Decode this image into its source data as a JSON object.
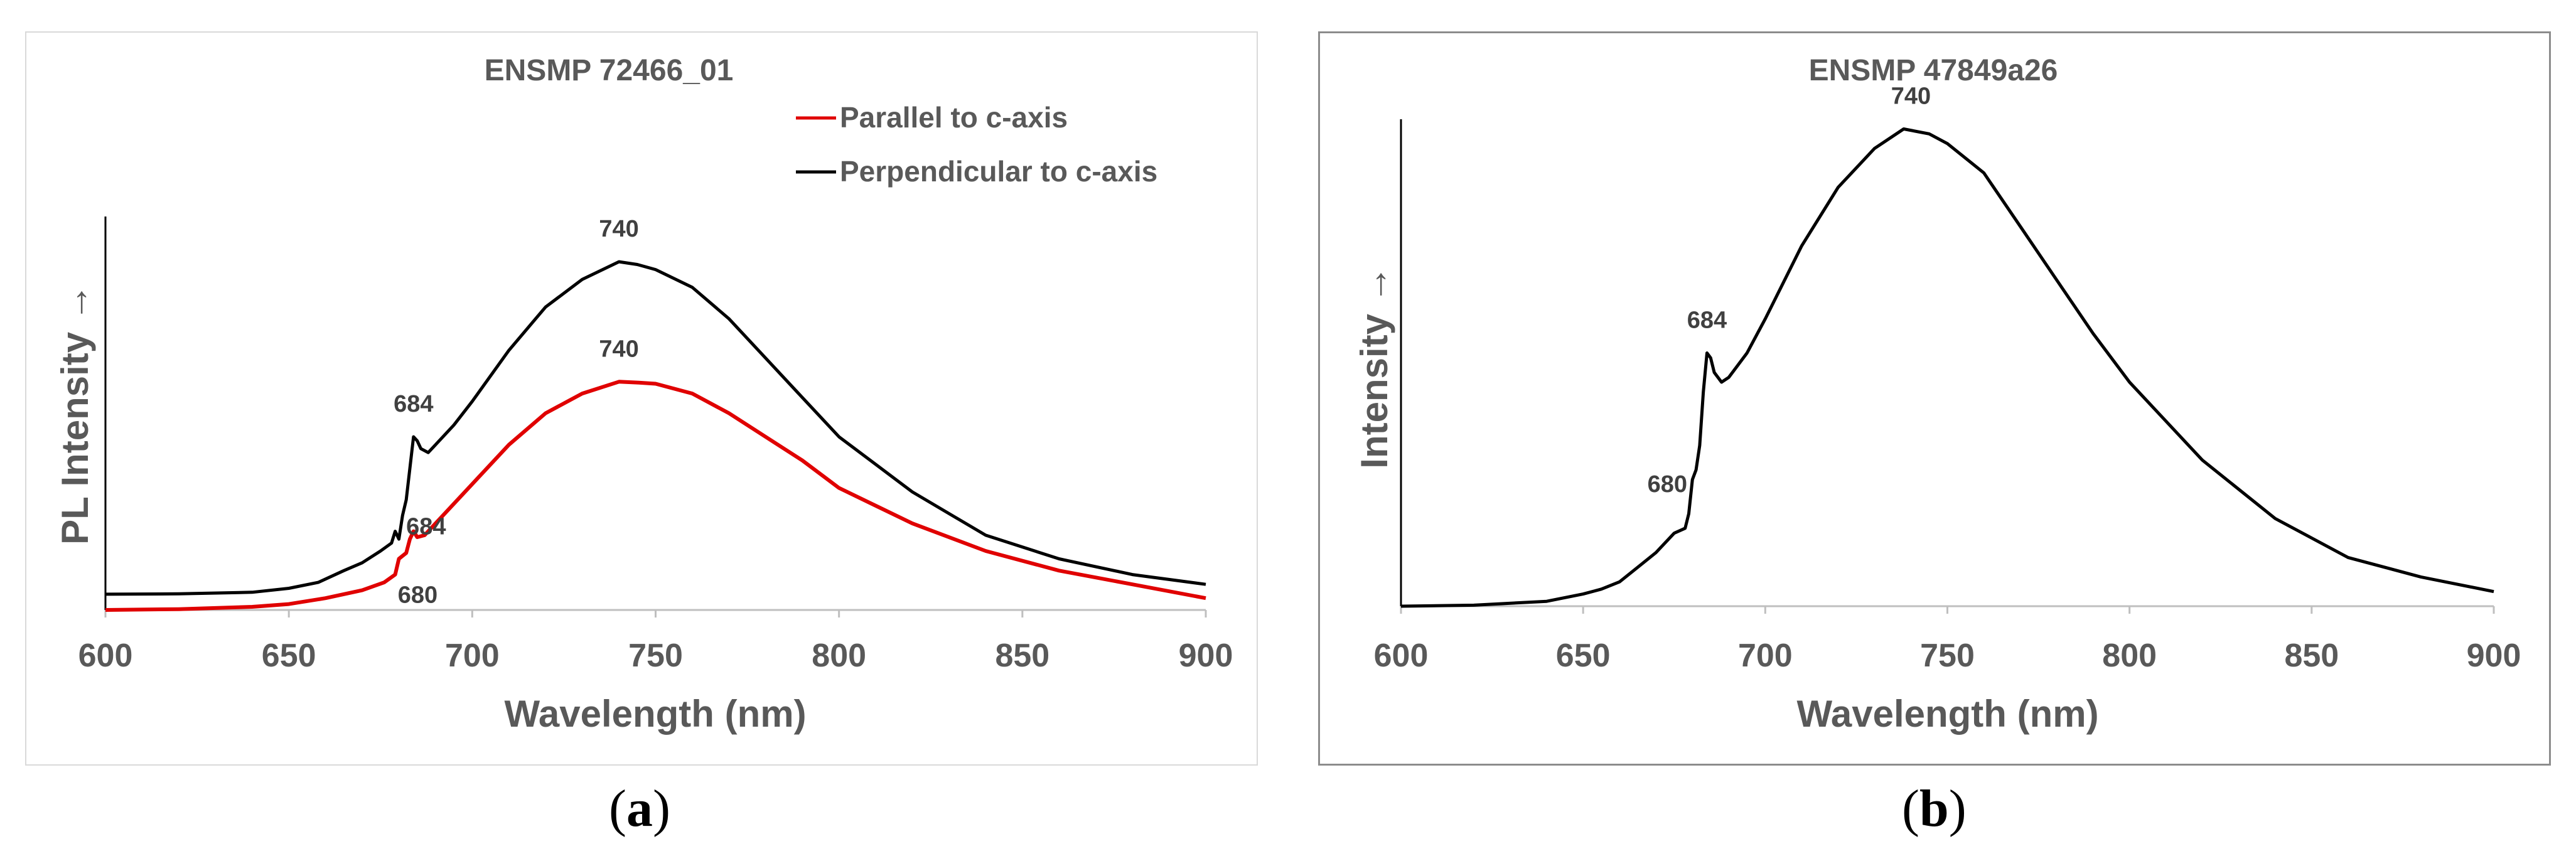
{
  "captions": [
    "a",
    "b"
  ],
  "chart_data": [
    {
      "type": "line",
      "title": "ENSMP 72466_01",
      "xlabel": "Wavelength (nm)",
      "ylabel": "PL Intensity →",
      "xlim": [
        600,
        900
      ],
      "ylim": [
        0,
        1.0
      ],
      "xticks": [
        "600",
        "650",
        "700",
        "750",
        "800",
        "850",
        "900"
      ],
      "legend_position": "top-right",
      "series": [
        {
          "name": "Parallel to c-axis",
          "color": "#e00000",
          "x": [
            600,
            620,
            640,
            650,
            660,
            670,
            676,
            679,
            680,
            682,
            683,
            684,
            685,
            687,
            690,
            700,
            710,
            720,
            730,
            740,
            745,
            750,
            760,
            770,
            780,
            790,
            800,
            820,
            840,
            860,
            880,
            900
          ],
          "y": [
            0.0,
            0.002,
            0.008,
            0.015,
            0.03,
            0.05,
            0.07,
            0.09,
            0.13,
            0.145,
            0.18,
            0.2,
            0.185,
            0.19,
            0.22,
            0.32,
            0.42,
            0.5,
            0.55,
            0.58,
            0.578,
            0.575,
            0.55,
            0.5,
            0.44,
            0.38,
            0.31,
            0.22,
            0.15,
            0.1,
            0.065,
            0.03
          ]
        },
        {
          "name": "Perpendicular to c-axis",
          "color": "#000000",
          "x": [
            600,
            620,
            640,
            650,
            658,
            665,
            670,
            675,
            678,
            679,
            680,
            681,
            682,
            683,
            684,
            685,
            686,
            688,
            690,
            695,
            700,
            710,
            720,
            730,
            740,
            745,
            750,
            760,
            770,
            780,
            790,
            800,
            820,
            840,
            860,
            880,
            900
          ],
          "y": [
            0.04,
            0.041,
            0.045,
            0.055,
            0.07,
            0.1,
            0.12,
            0.15,
            0.17,
            0.2,
            0.18,
            0.24,
            0.28,
            0.36,
            0.44,
            0.43,
            0.41,
            0.4,
            0.42,
            0.47,
            0.53,
            0.66,
            0.77,
            0.84,
            0.885,
            0.878,
            0.865,
            0.82,
            0.74,
            0.64,
            0.54,
            0.44,
            0.3,
            0.19,
            0.13,
            0.09,
            0.065
          ]
        }
      ],
      "annotations": [
        {
          "text": "740",
          "x": 740,
          "y": 0.885
        },
        {
          "text": "684",
          "x": 684,
          "y": 0.44
        },
        {
          "text": "740",
          "x": 740,
          "y": 0.58
        },
        {
          "text": "684",
          "x": 684,
          "y": 0.2
        },
        {
          "text": "680",
          "x": 680,
          "y": 0.13
        }
      ]
    },
    {
      "type": "line",
      "title": "ENSMP 47849a26",
      "xlabel": "Wavelength (nm)",
      "ylabel": "Intensity →",
      "xlim": [
        600,
        900
      ],
      "ylim": [
        0,
        1.0
      ],
      "xticks": [
        "600",
        "650",
        "700",
        "750",
        "800",
        "850",
        "900"
      ],
      "series": [
        {
          "name": "Intensity",
          "color": "#000000",
          "x": [
            600,
            620,
            640,
            650,
            655,
            660,
            665,
            670,
            675,
            678,
            679,
            680,
            681,
            682,
            683,
            684,
            685,
            686,
            688,
            690,
            695,
            700,
            710,
            720,
            730,
            738,
            745,
            750,
            760,
            770,
            780,
            790,
            800,
            820,
            840,
            860,
            880,
            900
          ],
          "y": [
            0.0,
            0.002,
            0.01,
            0.025,
            0.035,
            0.05,
            0.08,
            0.11,
            0.15,
            0.16,
            0.19,
            0.26,
            0.28,
            0.33,
            0.44,
            0.52,
            0.51,
            0.48,
            0.46,
            0.47,
            0.52,
            0.59,
            0.74,
            0.86,
            0.94,
            0.98,
            0.97,
            0.95,
            0.89,
            0.78,
            0.67,
            0.56,
            0.46,
            0.3,
            0.18,
            0.1,
            0.06,
            0.03
          ]
        }
      ],
      "annotations": [
        {
          "text": "740",
          "x": 740,
          "y": 0.98
        },
        {
          "text": "684",
          "x": 684,
          "y": 0.52
        },
        {
          "text": "680",
          "x": 680,
          "y": 0.26
        }
      ]
    }
  ]
}
